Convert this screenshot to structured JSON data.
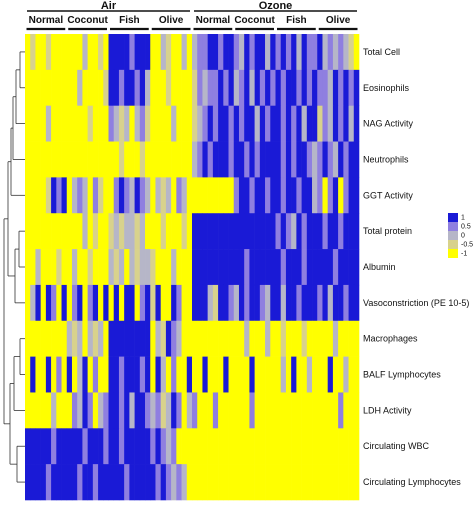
{
  "chart_data": {
    "type": "heatmap",
    "title": "",
    "conditions": [
      {
        "name": "Air",
        "groups": [
          "Normal",
          "Coconut",
          "Fish",
          "Olive"
        ]
      },
      {
        "name": "Ozone",
        "groups": [
          "Normal",
          "Coconut",
          "Fish",
          "Olive"
        ]
      }
    ],
    "columns_per_group": 8,
    "rows": [
      "Total Cell",
      "Eosinophils",
      "NAG Activity",
      "Neutrophils",
      "GGT Activity",
      "Total protein",
      "Albumin",
      "Vasoconstriction (PE 10-5)",
      "Macrophages",
      "BALF Lymphocytes",
      "LDH Activity",
      "Circulating WBC",
      "Circulating Lymphocytes"
    ],
    "values": [
      [
        -1,
        -0.5,
        -1,
        -1,
        -0.5,
        -1,
        -1,
        -1,
        -1,
        -1,
        -1,
        0,
        -1,
        -1,
        -0.5,
        -1,
        1,
        1,
        1,
        1,
        0.5,
        1,
        1,
        1,
        -1,
        -1,
        0,
        -0.5,
        -1,
        -1,
        0,
        -1,
        0,
        0.5,
        0.5,
        1,
        1,
        0.5,
        1,
        1,
        0.5,
        0,
        1,
        0.5,
        1,
        1,
        0,
        1,
        0.5,
        1,
        0.5,
        1,
        0,
        1,
        0.5,
        0.5,
        1,
        0,
        0.5,
        0,
        0.5,
        0,
        -0.5,
        -1
      ],
      [
        -1,
        -1,
        -1,
        -1,
        -1,
        -1,
        -1,
        -1,
        -1,
        -1,
        0,
        -1,
        -1,
        -1,
        -1,
        -0.5,
        1,
        1,
        0.5,
        1,
        1,
        0.5,
        1,
        0,
        -1,
        -1,
        -1,
        -0.5,
        -1,
        -1,
        -1,
        -1,
        -0.5,
        0.5,
        0,
        0.5,
        0.5,
        1,
        0.5,
        1,
        0,
        0.5,
        1,
        0,
        1,
        0.5,
        1,
        0.5,
        1,
        0.5,
        1,
        1,
        0.5,
        1,
        0.5,
        1,
        0.5,
        0.5,
        0,
        1,
        0.5,
        1,
        0.5,
        1
      ],
      [
        -1,
        -1,
        -1,
        -1,
        0,
        -1,
        -1,
        -1,
        -1,
        -1,
        -1,
        -1,
        -0.5,
        -1,
        -1,
        -1,
        0.5,
        0,
        -0.5,
        0,
        -1,
        0,
        0.5,
        -0.5,
        -1,
        -1,
        -1,
        -1,
        0,
        -1,
        -1,
        -1,
        -0.5,
        0,
        0.5,
        1,
        0.5,
        1,
        1,
        0.5,
        1,
        0.5,
        1,
        1,
        0,
        1,
        0.5,
        1,
        1,
        0.5,
        1,
        0.5,
        1,
        0,
        1,
        1,
        -0.5,
        0.5,
        0,
        1,
        0.5,
        1,
        0,
        1
      ],
      [
        -1,
        -1,
        -1,
        -1,
        -1,
        -1,
        -1,
        -1,
        -1,
        -1,
        -1,
        -1,
        -1,
        -1,
        -1,
        -1,
        -1,
        -1,
        -0.5,
        -1,
        -1,
        -1,
        -0.5,
        -1,
        -1,
        -1,
        -1,
        -1,
        -1,
        -1,
        -1,
        -1,
        0,
        0.5,
        1,
        0.5,
        1,
        1,
        1,
        0.5,
        1,
        1,
        0.5,
        1,
        0.5,
        1,
        1,
        1,
        1,
        0.5,
        1,
        0.5,
        1,
        1,
        0.5,
        0,
        0.5,
        1,
        0.5,
        0,
        1,
        0.5,
        1,
        1
      ],
      [
        -1,
        -1,
        -1,
        -1,
        -0.5,
        1,
        0.5,
        1,
        -1,
        0,
        0.5,
        0,
        -1,
        0.5,
        -0.5,
        -1,
        -1,
        0.5,
        1,
        0.5,
        0,
        1,
        0.5,
        0,
        -1,
        0,
        -0.5,
        0,
        -1,
        0.5,
        0,
        -1,
        -1,
        -1,
        -1,
        -1,
        -1,
        -1,
        -1,
        -1,
        0.5,
        1,
        1,
        0.5,
        1,
        1,
        0.5,
        1,
        1,
        0.5,
        1,
        1,
        0.5,
        1,
        1,
        0,
        0.5,
        -1,
        0.5,
        1,
        -1,
        0.5,
        1,
        1
      ],
      [
        -1,
        -1,
        -1,
        -1,
        -1,
        -1,
        -1,
        -1,
        -1,
        -1,
        -1,
        0,
        -1,
        -0.5,
        -1,
        -1,
        -0.5,
        0,
        -0.5,
        0,
        0,
        -0.5,
        0,
        -1,
        -1,
        -1,
        -0.5,
        -1,
        -1,
        -1,
        -0.5,
        -1,
        1,
        1,
        1,
        1,
        1,
        1,
        1,
        1,
        1,
        1,
        1,
        1,
        1,
        1,
        1,
        1,
        0.5,
        1,
        0.5,
        0,
        1,
        0.5,
        1,
        1,
        1,
        0.5,
        1,
        1,
        0.5,
        1,
        1,
        1
      ],
      [
        -1,
        -1,
        0,
        -1,
        -1,
        -1,
        -0.5,
        -1,
        -1,
        0,
        -1,
        -1,
        -0.5,
        -1,
        -1,
        -1,
        0,
        -0.5,
        0,
        -1,
        0,
        -0.5,
        0,
        0,
        -0.5,
        -1,
        -1,
        -1,
        0,
        -1,
        -1,
        -1,
        1,
        1,
        1,
        1,
        1,
        1,
        1,
        1,
        1,
        1,
        0.5,
        1,
        1,
        1,
        1,
        1,
        1,
        0.5,
        1,
        1,
        1,
        0.5,
        1,
        1,
        1,
        1,
        1,
        0.5,
        1,
        1,
        1,
        1
      ],
      [
        -1,
        0,
        1,
        -1,
        1,
        0.5,
        -1,
        1,
        -1,
        0.5,
        1,
        -1,
        0.5,
        1,
        -1,
        1,
        -1,
        1,
        -1,
        1,
        1,
        -1,
        0.5,
        1,
        -0.5,
        1,
        -1,
        -1,
        1,
        0.5,
        -1,
        -1,
        1,
        1,
        1,
        0,
        -0.5,
        1,
        1,
        0.5,
        0,
        1,
        0.5,
        1,
        1,
        0.5,
        0,
        1,
        1,
        0,
        1,
        1,
        0.5,
        1,
        1,
        1,
        0.5,
        1,
        0,
        1,
        1,
        0.5,
        1,
        1
      ],
      [
        -1,
        -1,
        -1,
        -1,
        -1,
        -1,
        -1,
        -1,
        0,
        -0.5,
        0,
        -1,
        0,
        -0.5,
        0,
        -1,
        1,
        1,
        1,
        1,
        1,
        1,
        1,
        1,
        -1,
        0,
        -0.5,
        1,
        0.5,
        0,
        -1,
        -1,
        -1,
        -1,
        -1,
        -1,
        -1,
        -1,
        -1,
        -1,
        -1,
        -1,
        0,
        -1,
        -1,
        -1,
        0,
        -1,
        -1,
        -0.5,
        -1,
        -1,
        -1,
        -0.5,
        -1,
        -1,
        -1,
        -1,
        -1,
        0,
        -1,
        -1,
        -1,
        -1
      ],
      [
        -1,
        1,
        -1,
        -1,
        1,
        -1,
        0.5,
        -1,
        1,
        -1,
        0,
        1,
        -1,
        0.5,
        -1,
        -1,
        1,
        1,
        0.5,
        1,
        1,
        1,
        0.5,
        1,
        -1,
        1,
        0,
        -1,
        0.5,
        -1,
        -1,
        1,
        -1,
        -1,
        1,
        -1,
        -1,
        -1,
        1,
        -1,
        -1,
        -1,
        -1,
        1,
        -1,
        -1,
        -1,
        -1,
        -1,
        0,
        -1,
        1,
        -1,
        -1,
        0,
        -1,
        -1,
        -1,
        1,
        -1,
        -1,
        0,
        -1,
        -1
      ],
      [
        -1,
        -1,
        -1,
        -1,
        -1,
        0,
        -1,
        -1,
        -1,
        0.5,
        0,
        1,
        0.5,
        -1,
        0,
        0.5,
        1,
        1,
        0.5,
        1,
        0,
        1,
        1,
        0.5,
        0,
        0.5,
        -0.5,
        0,
        1,
        0.5,
        -1,
        0,
        0.5,
        -1,
        -1,
        -1,
        0.5,
        -1,
        -1,
        -1,
        -1,
        -1,
        -1,
        0.5,
        -1,
        -1,
        -1,
        -1,
        -1,
        -1,
        -1,
        -1,
        -1,
        -1,
        -1,
        -1,
        -1,
        -1,
        -1,
        -1,
        0.5,
        -1,
        -1,
        -1
      ],
      [
        1,
        1,
        1,
        1,
        1,
        0.5,
        1,
        1,
        1,
        1,
        1,
        0.5,
        1,
        1,
        1,
        0.5,
        1,
        1,
        0.5,
        1,
        1,
        1,
        1,
        1,
        0.5,
        1,
        0.5,
        0,
        0.5,
        -1,
        -1,
        -1,
        -1,
        -1,
        -1,
        -1,
        -1,
        -1,
        -1,
        -1,
        -1,
        -1,
        -1,
        -1,
        -1,
        -1,
        -1,
        -1,
        -1,
        -1,
        -1,
        -1,
        -1,
        -1,
        -1,
        -1,
        -1,
        -1,
        -1,
        -1,
        -1,
        -1,
        -1,
        -1
      ],
      [
        1,
        1,
        1,
        1,
        0.5,
        1,
        1,
        1,
        1,
        1,
        0.5,
        1,
        1,
        0.5,
        1,
        1,
        1,
        1,
        1,
        0.5,
        1,
        1,
        1,
        1,
        1,
        0.5,
        1,
        0.5,
        0,
        0.5,
        0,
        -1,
        -1,
        -1,
        -1,
        -1,
        -1,
        -1,
        -1,
        -1,
        -1,
        -1,
        -1,
        -1,
        -1,
        -1,
        -1,
        -1,
        -1,
        -1,
        -1,
        -1,
        -1,
        -1,
        -1,
        -1,
        -1,
        -1,
        -1,
        -1,
        -1,
        -1,
        -1,
        -1
      ]
    ],
    "color_scale": {
      "ticks": [
        "1",
        "0.5",
        "0",
        "-0.5",
        "-1"
      ],
      "colors": [
        "#1a1ad6",
        "#8f7fe0",
        "#b6b6c8",
        "#d8d28c",
        "#ffff00"
      ]
    },
    "dendrogram": "rows",
    "legend_position": "right"
  }
}
